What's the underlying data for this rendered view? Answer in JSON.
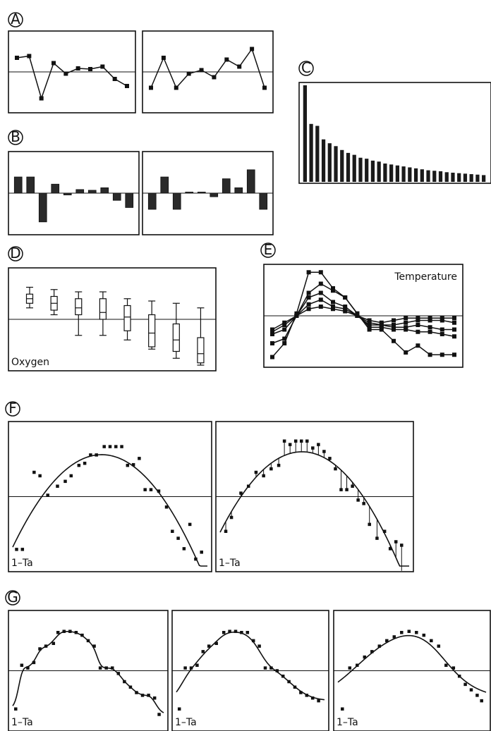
{
  "figure": {
    "panel_letters": [
      "A",
      "B",
      "C",
      "D",
      "E",
      "F",
      "G"
    ]
  },
  "chart_data": [
    {
      "id": "A1",
      "panel": "A",
      "type": "line",
      "markers": "square",
      "ylim": [
        -1,
        1
      ],
      "values": [
        0.4,
        0.45,
        -0.75,
        0.25,
        -0.05,
        0.1,
        0.08,
        0.15,
        -0.2,
        -0.4
      ]
    },
    {
      "id": "A2",
      "panel": "A",
      "type": "line",
      "markers": "square",
      "ylim": [
        -1,
        1
      ],
      "values": [
        -0.45,
        0.4,
        -0.45,
        -0.05,
        0.05,
        -0.15,
        0.35,
        0.15,
        0.65,
        -0.45
      ]
    },
    {
      "id": "B1",
      "panel": "B",
      "type": "bar",
      "ylim": [
        -1,
        1
      ],
      "values": [
        0.45,
        0.45,
        -0.8,
        0.25,
        -0.05,
        0.1,
        0.08,
        0.15,
        -0.2,
        -0.4
      ]
    },
    {
      "id": "B2",
      "panel": "B",
      "type": "bar",
      "ylim": [
        -1,
        1
      ],
      "values": [
        -0.45,
        0.45,
        -0.45,
        0.03,
        0.03,
        -0.1,
        0.4,
        0.15,
        0.65,
        -0.45
      ]
    },
    {
      "id": "C",
      "panel": "C",
      "type": "bar",
      "ylim": [
        0,
        1
      ],
      "values": [
        1.0,
        0.6,
        0.58,
        0.44,
        0.4,
        0.37,
        0.33,
        0.3,
        0.28,
        0.25,
        0.24,
        0.22,
        0.21,
        0.19,
        0.18,
        0.17,
        0.16,
        0.15,
        0.14,
        0.13,
        0.12,
        0.115,
        0.11,
        0.1,
        0.095,
        0.09,
        0.085,
        0.08,
        0.075,
        0.07
      ]
    },
    {
      "id": "D",
      "panel": "D",
      "type": "box",
      "label": "Oxygen",
      "ylim": [
        -1,
        1
      ],
      "boxes": [
        {
          "min": 0.25,
          "q1": 0.35,
          "median": 0.45,
          "q3": 0.55,
          "max": 0.7
        },
        {
          "min": 0.1,
          "q1": 0.2,
          "median": 0.35,
          "q3": 0.5,
          "max": 0.65
        },
        {
          "min": -0.35,
          "q1": 0.1,
          "median": 0.25,
          "q3": 0.45,
          "max": 0.6
        },
        {
          "min": -0.35,
          "q1": 0,
          "median": 0.15,
          "q3": 0.45,
          "max": 0.6
        },
        {
          "min": -0.45,
          "q1": -0.25,
          "median": 0.05,
          "q3": 0.3,
          "max": 0.45
        },
        {
          "min": -0.65,
          "q1": -0.6,
          "median": -0.3,
          "q3": 0.1,
          "max": 0.4
        },
        {
          "min": -0.85,
          "q1": -0.7,
          "median": -0.45,
          "q3": -0.1,
          "max": 0.35
        },
        {
          "min": -1.0,
          "q1": -0.95,
          "median": -0.75,
          "q3": -0.4,
          "max": 0.25
        }
      ]
    },
    {
      "id": "E",
      "panel": "E",
      "type": "line",
      "markers": "square",
      "label": "Temperature",
      "ylim": [
        -1,
        1
      ],
      "series": [
        {
          "values": [
            -0.9,
            -0.6,
            0.05,
            0.95,
            0.95,
            0.6,
            0.4,
            0.05,
            -0.3,
            -0.3,
            -0.55,
            -0.8,
            -0.65,
            -0.85,
            -0.85,
            -0.85
          ]
        },
        {
          "values": [
            -0.6,
            -0.5,
            0,
            0.5,
            0.7,
            0.55,
            0.4,
            0.05,
            -0.25,
            -0.25,
            -0.3,
            -0.3,
            -0.35,
            -0.35,
            -0.4,
            -0.45
          ]
        },
        {
          "values": [
            -0.4,
            -0.3,
            0,
            0.4,
            0.5,
            0.3,
            0.2,
            0,
            -0.2,
            -0.2,
            -0.25,
            -0.25,
            -0.2,
            -0.25,
            -0.3,
            -0.3
          ]
        },
        {
          "values": [
            -0.35,
            -0.2,
            0,
            0.25,
            0.35,
            0.2,
            0.15,
            0,
            -0.15,
            -0.2,
            -0.2,
            -0.15,
            -0.1,
            -0.1,
            -0.1,
            -0.15
          ]
        },
        {
          "values": [
            -0.3,
            -0.15,
            0,
            0.15,
            0.2,
            0.15,
            0.1,
            0,
            -0.1,
            -0.15,
            -0.1,
            -0.05,
            -0.05,
            -0.05,
            -0.05,
            -0.05
          ]
        }
      ]
    },
    {
      "id": "F1",
      "panel": "F",
      "type": "scatter",
      "fit": "quadratic",
      "label": "1–Ta",
      "ylim": [
        -1,
        1
      ],
      "points": [
        [
          0.02,
          -0.76
        ],
        [
          0.05,
          -0.76
        ],
        [
          0.11,
          0.35
        ],
        [
          0.14,
          0.3
        ],
        [
          0.18,
          0.02
        ],
        [
          0.23,
          0.15
        ],
        [
          0.27,
          0.22
        ],
        [
          0.3,
          0.3
        ],
        [
          0.34,
          0.45
        ],
        [
          0.37,
          0.48
        ],
        [
          0.4,
          0.6
        ],
        [
          0.43,
          0.6
        ],
        [
          0.47,
          0.72
        ],
        [
          0.5,
          0.72
        ],
        [
          0.53,
          0.72
        ],
        [
          0.56,
          0.72
        ],
        [
          0.59,
          0.45
        ],
        [
          0.62,
          0.46
        ],
        [
          0.65,
          0.55
        ],
        [
          0.68,
          0.1
        ],
        [
          0.71,
          0.1
        ],
        [
          0.75,
          0.08
        ],
        [
          0.79,
          -0.15
        ],
        [
          0.82,
          -0.5
        ],
        [
          0.85,
          -0.6
        ],
        [
          0.88,
          -0.75
        ],
        [
          0.91,
          -0.4
        ],
        [
          0.94,
          -0.9
        ],
        [
          0.97,
          -0.8
        ]
      ]
    },
    {
      "id": "F2",
      "panel": "F",
      "type": "scatter",
      "fit": "quadratic",
      "residual_lines": true,
      "label": "1–Ta",
      "ylim": [
        -1,
        1
      ],
      "points": [
        [
          0.03,
          -0.5
        ],
        [
          0.06,
          -0.3
        ],
        [
          0.11,
          0.05
        ],
        [
          0.15,
          0.15
        ],
        [
          0.19,
          0.35
        ],
        [
          0.23,
          0.3
        ],
        [
          0.27,
          0.4
        ],
        [
          0.31,
          0.45
        ],
        [
          0.34,
          0.8
        ],
        [
          0.37,
          0.75
        ],
        [
          0.4,
          0.8
        ],
        [
          0.43,
          0.8
        ],
        [
          0.46,
          0.8
        ],
        [
          0.49,
          0.7
        ],
        [
          0.52,
          0.75
        ],
        [
          0.55,
          0.65
        ],
        [
          0.58,
          0.55
        ],
        [
          0.61,
          0.4
        ],
        [
          0.64,
          0.1
        ],
        [
          0.67,
          0.1
        ],
        [
          0.7,
          0.15
        ],
        [
          0.73,
          -0.05
        ],
        [
          0.76,
          -0.1
        ],
        [
          0.79,
          -0.4
        ],
        [
          0.83,
          -0.6
        ],
        [
          0.87,
          -0.5
        ],
        [
          0.9,
          -0.75
        ],
        [
          0.93,
          -0.65
        ],
        [
          0.96,
          -0.7
        ]
      ]
    },
    {
      "id": "G1",
      "panel": "G",
      "type": "scatter",
      "fit": "smooth-rough",
      "label": "1–Ta",
      "ylim": [
        -1,
        1
      ],
      "points": [
        [
          0.02,
          -0.7
        ],
        [
          0.06,
          0.1
        ],
        [
          0.1,
          0.05
        ],
        [
          0.14,
          0.15
        ],
        [
          0.18,
          0.4
        ],
        [
          0.22,
          0.45
        ],
        [
          0.27,
          0.5
        ],
        [
          0.3,
          0.7
        ],
        [
          0.34,
          0.72
        ],
        [
          0.38,
          0.72
        ],
        [
          0.42,
          0.7
        ],
        [
          0.46,
          0.65
        ],
        [
          0.5,
          0.55
        ],
        [
          0.54,
          0.45
        ],
        [
          0.58,
          0.05
        ],
        [
          0.62,
          0.05
        ],
        [
          0.66,
          0.05
        ],
        [
          0.7,
          -0.05
        ],
        [
          0.74,
          -0.2
        ],
        [
          0.78,
          -0.3
        ],
        [
          0.82,
          -0.4
        ],
        [
          0.86,
          -0.45
        ],
        [
          0.9,
          -0.45
        ],
        [
          0.94,
          -0.5
        ],
        [
          0.97,
          -0.8
        ]
      ]
    },
    {
      "id": "G2",
      "panel": "G",
      "type": "scatter",
      "fit": "smooth-medium",
      "label": "1–Ta",
      "ylim": [
        -1,
        1
      ],
      "points": [
        [
          0.02,
          -0.7
        ],
        [
          0.06,
          0.05
        ],
        [
          0.1,
          0.05
        ],
        [
          0.14,
          0.1
        ],
        [
          0.18,
          0.35
        ],
        [
          0.22,
          0.45
        ],
        [
          0.27,
          0.5
        ],
        [
          0.32,
          0.7
        ],
        [
          0.36,
          0.72
        ],
        [
          0.4,
          0.72
        ],
        [
          0.44,
          0.7
        ],
        [
          0.48,
          0.7
        ],
        [
          0.52,
          0.55
        ],
        [
          0.56,
          0.45
        ],
        [
          0.6,
          0.05
        ],
        [
          0.64,
          0.05
        ],
        [
          0.68,
          0
        ],
        [
          0.72,
          -0.1
        ],
        [
          0.76,
          -0.2
        ],
        [
          0.8,
          -0.3
        ],
        [
          0.84,
          -0.4
        ],
        [
          0.88,
          -0.45
        ],
        [
          0.92,
          -0.5
        ],
        [
          0.96,
          -0.55
        ]
      ]
    },
    {
      "id": "G3",
      "panel": "G",
      "type": "scatter",
      "fit": "smooth-loose",
      "label": "1–Ta",
      "ylim": [
        -1,
        1
      ],
      "points": [
        [
          0.03,
          -0.7
        ],
        [
          0.08,
          0.05
        ],
        [
          0.13,
          0.1
        ],
        [
          0.18,
          0.25
        ],
        [
          0.23,
          0.35
        ],
        [
          0.28,
          0.45
        ],
        [
          0.33,
          0.55
        ],
        [
          0.38,
          0.62
        ],
        [
          0.43,
          0.7
        ],
        [
          0.48,
          0.72
        ],
        [
          0.53,
          0.7
        ],
        [
          0.58,
          0.65
        ],
        [
          0.63,
          0.55
        ],
        [
          0.68,
          0.45
        ],
        [
          0.73,
          0.1
        ],
        [
          0.78,
          0.05
        ],
        [
          0.82,
          -0.1
        ],
        [
          0.86,
          -0.25
        ],
        [
          0.9,
          -0.35
        ],
        [
          0.94,
          -0.45
        ],
        [
          0.97,
          -0.55
        ]
      ]
    }
  ]
}
